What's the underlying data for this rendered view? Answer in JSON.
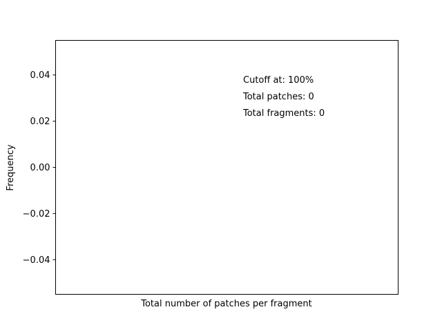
{
  "chart_data": {
    "type": "bar",
    "title": "",
    "xlabel": "Total number of patches per fragment",
    "ylabel": "Frequency",
    "categories": [],
    "values": [],
    "ylim": [
      -0.055,
      0.055
    ],
    "yticks": [
      {
        "value": 0.04,
        "label": "0.04"
      },
      {
        "value": 0.02,
        "label": "0.02"
      },
      {
        "value": 0.0,
        "label": "0.00"
      },
      {
        "value": -0.02,
        "label": "−0.02"
      },
      {
        "value": -0.04,
        "label": "−0.04"
      }
    ],
    "xticks": [],
    "grid": false,
    "annotations": [
      "Cutoff at: 100%",
      "Total patches: 0",
      "Total fragments: 0"
    ]
  }
}
